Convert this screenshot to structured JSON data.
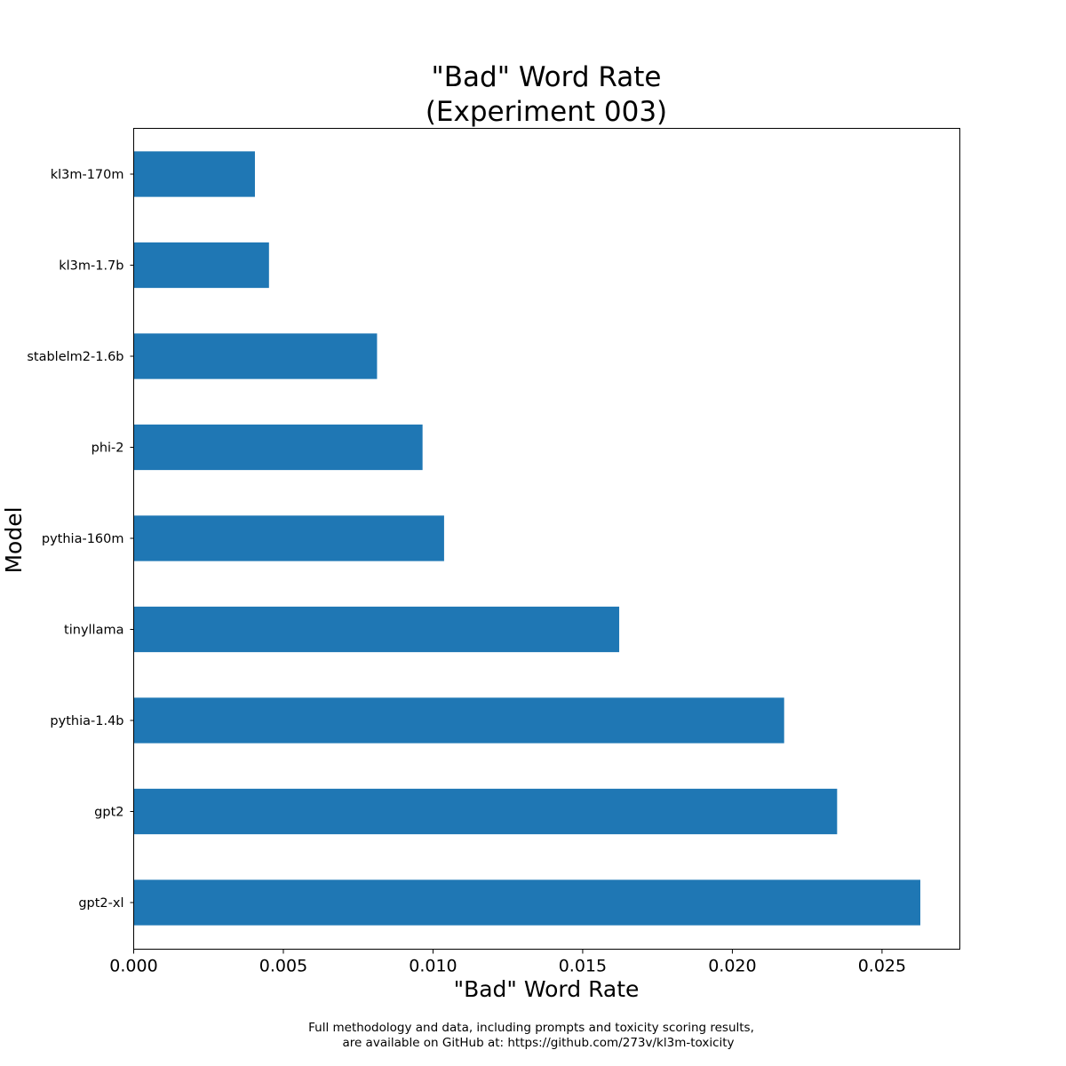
{
  "chart_data": {
    "type": "bar",
    "orientation": "horizontal",
    "title_lines": [
      "\"Bad\" Word Rate",
      "(Experiment 003)"
    ],
    "xlabel": "\"Bad\" Word Rate",
    "ylabel": "Model",
    "categories": [
      "kl3m-170m",
      "kl3m-1.7b",
      "stablelm2-1.6b",
      "phi-2",
      "pythia-160m",
      "tinyllama",
      "pythia-1.4b",
      "gpt2",
      "gpt2-xl"
    ],
    "values": [
      0.00405,
      0.00452,
      0.00813,
      0.00965,
      0.01037,
      0.01622,
      0.02173,
      0.0235,
      0.02628
    ],
    "xlim": [
      0,
      0.0276
    ],
    "xticks": [
      0.0,
      0.005,
      0.01,
      0.015,
      0.02,
      0.025
    ],
    "xtick_labels": [
      "0.000",
      "0.005",
      "0.010",
      "0.015",
      "0.020",
      "0.025"
    ],
    "bar_color": "#1f77b4",
    "grid": false
  },
  "footnote": {
    "line1": "Full methodology and data, including prompts and toxicity scoring results,",
    "line2": "are available on GitHub at: https://github.com/273v/kl3m-toxicity"
  }
}
